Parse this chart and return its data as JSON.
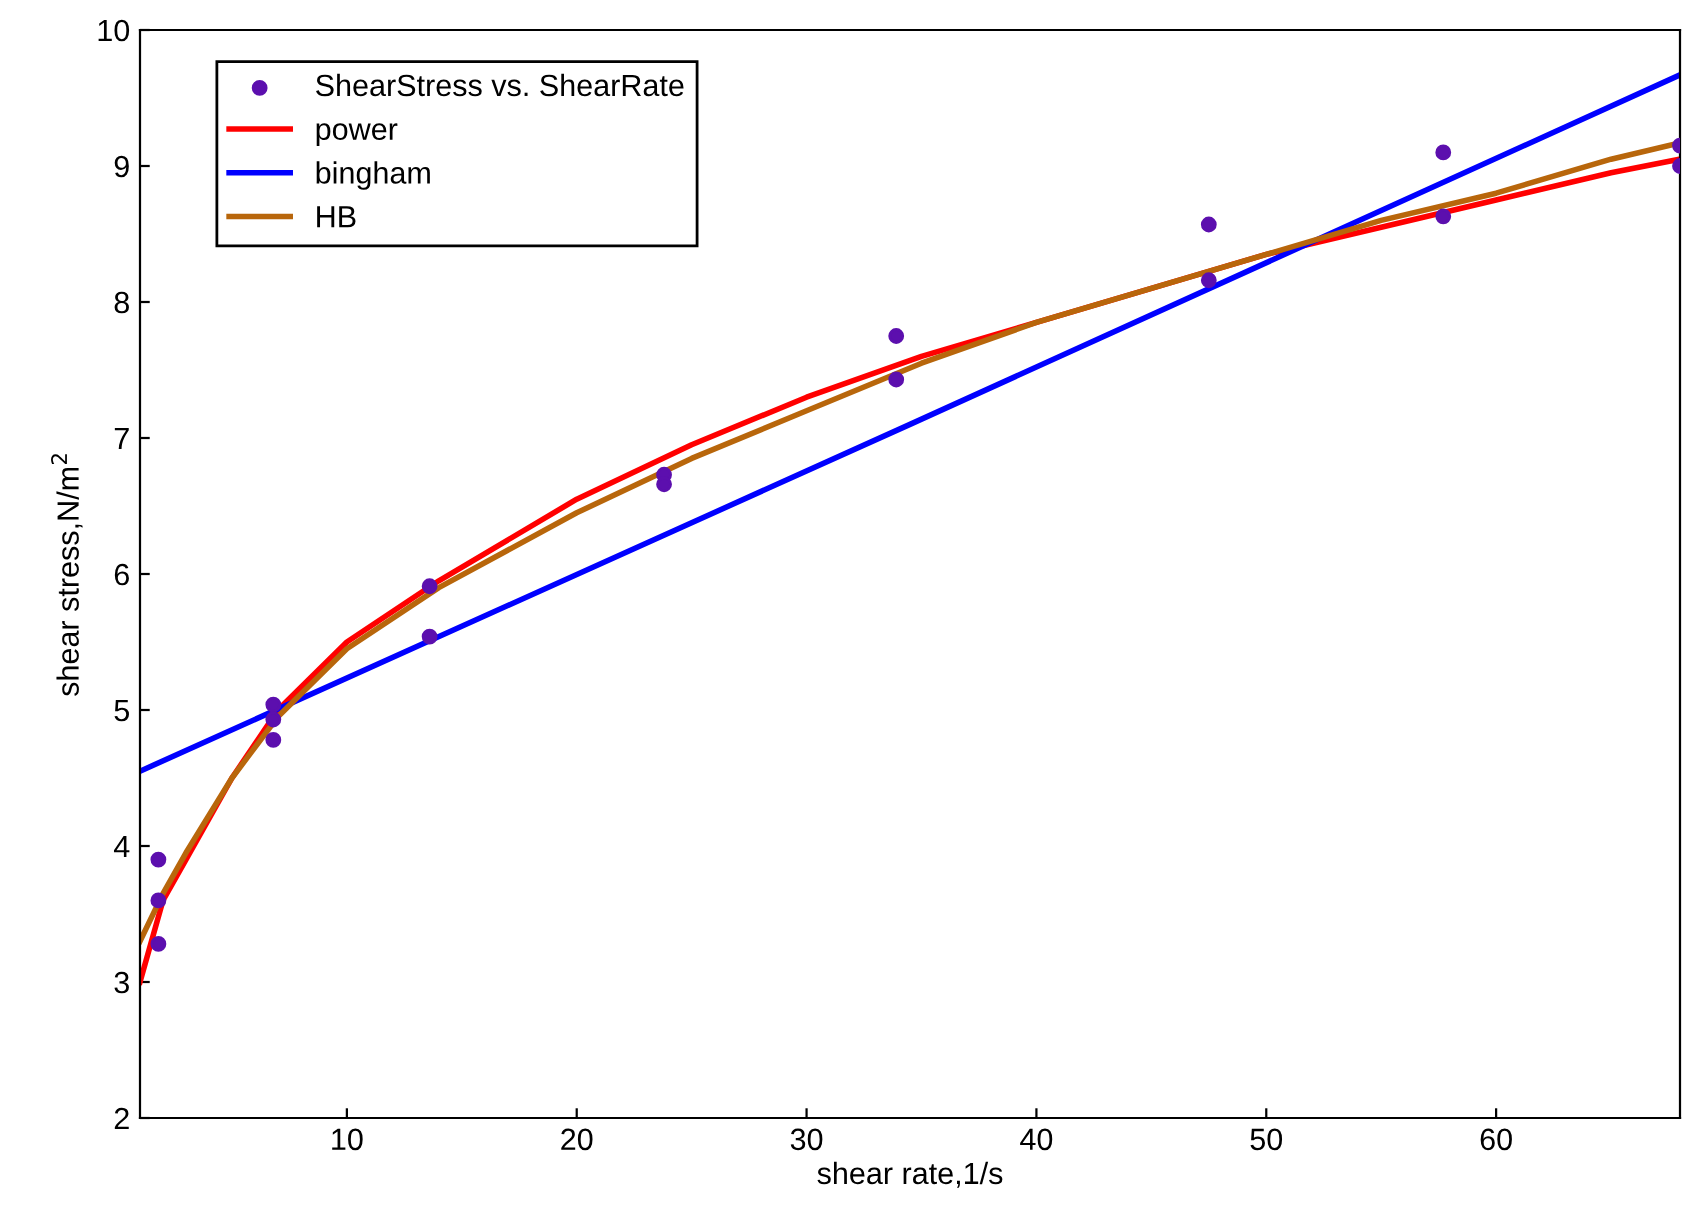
{
  "chart_data": {
    "type": "line",
    "xlabel": "shear rate,1/s",
    "ylabel": "shear stress,N/m$^{2}$",
    "xlim": [
      1,
      68
    ],
    "ylim": [
      2,
      10
    ],
    "xticks": [
      10,
      20,
      30,
      40,
      50,
      60
    ],
    "yticks": [
      2,
      3,
      4,
      5,
      6,
      7,
      8,
      9,
      10
    ],
    "grid": false,
    "legend": "top left",
    "series": [
      {
        "name": "ShearStress vs. ShearRate",
        "type": "scatter",
        "marker": "circle",
        "color": "#5c0fae",
        "x": [
          1.8,
          1.8,
          1.8,
          6.8,
          6.8,
          6.8,
          13.6,
          13.6,
          23.8,
          23.8,
          33.9,
          33.9,
          47.5,
          47.5,
          57.7,
          57.7,
          68,
          68
        ],
        "values": [
          3.9,
          3.6,
          3.28,
          5.04,
          4.93,
          4.78,
          5.91,
          5.54,
          6.73,
          6.66,
          7.75,
          7.43,
          8.57,
          8.16,
          9.1,
          8.63,
          9.15,
          9.0
        ]
      },
      {
        "name": "power",
        "color": "#ff0000",
        "x": [
          1,
          2,
          3,
          5,
          7,
          10,
          14,
          20,
          25,
          30,
          35,
          40,
          45,
          50,
          55,
          60,
          65,
          68
        ],
        "values": [
          3.0,
          3.6,
          3.9,
          4.5,
          5.0,
          5.5,
          5.95,
          6.55,
          6.95,
          7.3,
          7.6,
          7.85,
          8.1,
          8.35,
          8.55,
          8.75,
          8.95,
          9.05
        ]
      },
      {
        "name": "bingham",
        "color": "#0000ff",
        "x": [
          1,
          34.5,
          68
        ],
        "values": [
          4.55,
          7.1,
          9.67
        ]
      },
      {
        "name": "HB",
        "color": "#b8660b",
        "x": [
          1,
          2,
          3,
          5,
          7,
          10,
          14,
          20,
          25,
          30,
          35,
          40,
          45,
          50,
          55,
          60,
          65,
          68
        ],
        "values": [
          3.3,
          3.65,
          3.95,
          4.5,
          4.95,
          5.45,
          5.9,
          6.45,
          6.85,
          7.2,
          7.55,
          7.85,
          8.1,
          8.35,
          8.6,
          8.8,
          9.05,
          9.17
        ]
      }
    ]
  }
}
